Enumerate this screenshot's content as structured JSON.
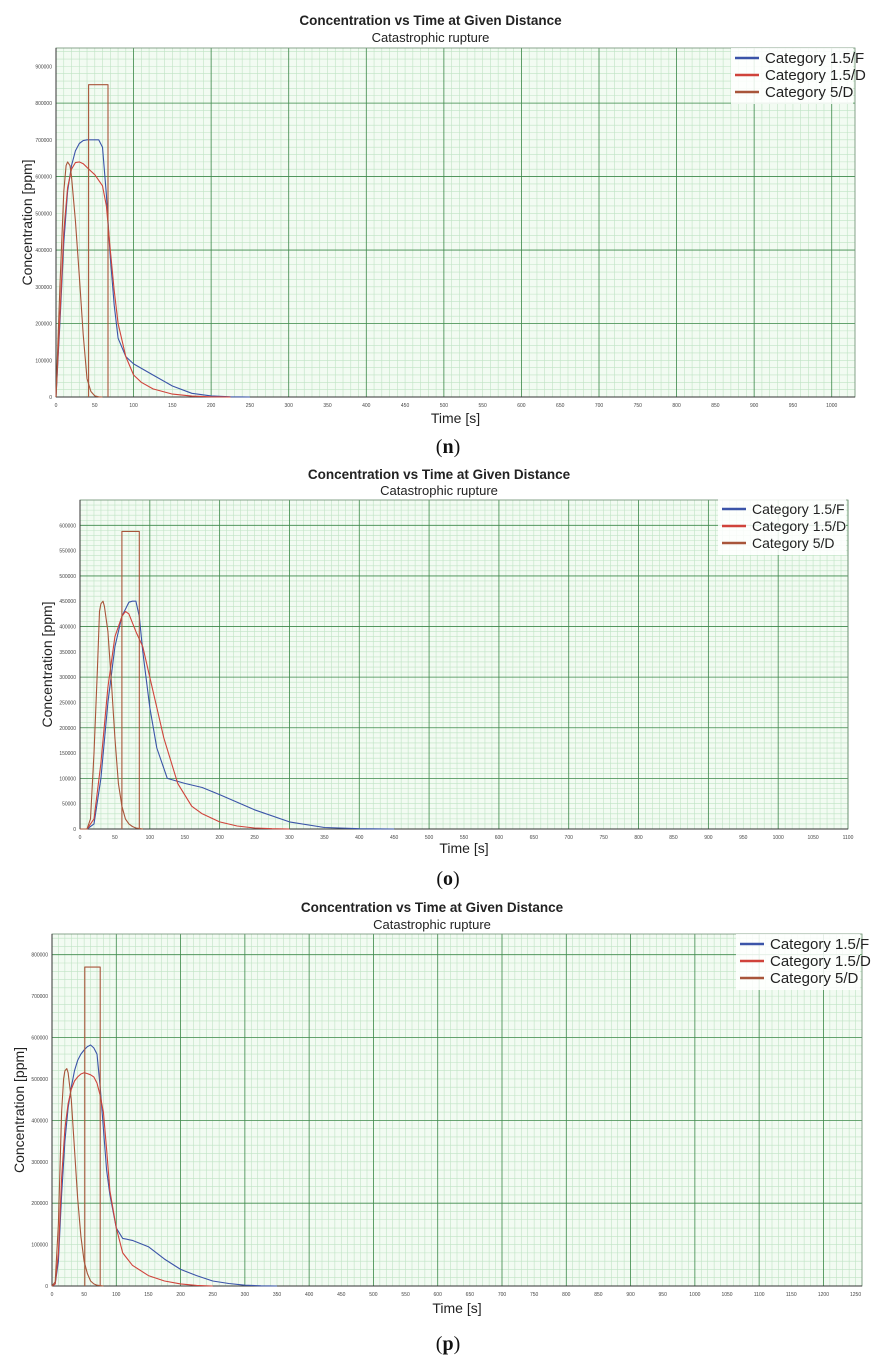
{
  "colors": {
    "series_blue": "#3b54a8",
    "series_red": "#d0433b",
    "series_brown": "#a8553a",
    "grid_major": "#3f8a4c",
    "grid_minor": "#bfe3c4",
    "plot_bg": "#f2fbf2"
  },
  "chart_data": [
    {
      "type": "line",
      "panel_label": "n",
      "title": "Concentration vs Time at Given Distance",
      "subtitle": "Catastrophic rupture",
      "xlabel": "Time [s]",
      "ylabel": "Concentration [ppm]",
      "xlim": [
        0,
        1030
      ],
      "ylim": [
        0,
        950000
      ],
      "x_ticks": [
        0,
        50,
        100,
        150,
        200,
        250,
        300,
        350,
        400,
        450,
        500,
        550,
        600,
        650,
        700,
        750,
        800,
        850,
        900,
        950,
        1000
      ],
      "y_ticks": [
        0,
        100000,
        200000,
        300000,
        400000,
        500000,
        600000,
        700000,
        800000,
        900000
      ],
      "grid": true,
      "legend_position": "top-right",
      "legend": [
        "Category 1.5/F",
        "Category 1.5/D",
        "Category 5/D"
      ],
      "series": [
        {
          "name": "Category 1.5/F",
          "x": [
            0,
            5,
            10,
            15,
            20,
            25,
            30,
            35,
            40,
            45,
            50,
            55,
            60,
            65,
            70,
            75,
            80,
            90,
            100,
            125,
            150,
            175,
            200,
            225,
            250
          ],
          "y": [
            0,
            200000,
            420000,
            560000,
            630000,
            670000,
            690000,
            698000,
            700000,
            700000,
            700000,
            700000,
            680000,
            550000,
            380000,
            250000,
            160000,
            110000,
            90000,
            60000,
            30000,
            10000,
            3000,
            500,
            0
          ]
        },
        {
          "name": "Category 1.5/D",
          "x": [
            0,
            5,
            10,
            15,
            20,
            25,
            30,
            35,
            40,
            45,
            50,
            55,
            60,
            65,
            70,
            75,
            80,
            90,
            100,
            110,
            125,
            150,
            175,
            200,
            225
          ],
          "y": [
            0,
            220000,
            450000,
            570000,
            620000,
            638000,
            640000,
            635000,
            625000,
            615000,
            605000,
            590000,
            575000,
            520000,
            400000,
            290000,
            200000,
            110000,
            60000,
            40000,
            22000,
            8000,
            2500,
            500,
            0
          ]
        },
        {
          "name": "Category 5/D",
          "x": [
            0,
            5,
            10,
            13,
            15,
            18,
            20,
            25,
            30,
            35,
            40,
            45,
            50,
            55,
            60
          ],
          "y": [
            0,
            300000,
            560000,
            630000,
            640000,
            630000,
            600000,
            480000,
            330000,
            170000,
            50000,
            15000,
            3000,
            500,
            0
          ]
        },
        {
          "name": "",
          "x": [
            42,
            42,
            67,
            67
          ],
          "y": [
            0,
            850000,
            850000,
            0
          ]
        }
      ]
    },
    {
      "type": "line",
      "panel_label": "o",
      "title": "Concentration vs Time at Given Distance",
      "subtitle": "Catastrophic rupture",
      "xlabel": "Time [s]",
      "ylabel": "Concentration [ppm]",
      "xlim": [
        0,
        1100
      ],
      "ylim": [
        0,
        650000
      ],
      "x_ticks": [
        0,
        50,
        100,
        150,
        200,
        250,
        300,
        350,
        400,
        450,
        500,
        550,
        600,
        650,
        700,
        750,
        800,
        850,
        900,
        950,
        1000,
        1050,
        1100
      ],
      "y_ticks": [
        0,
        50000,
        100000,
        150000,
        200000,
        250000,
        300000,
        350000,
        400000,
        450000,
        500000,
        550000,
        600000
      ],
      "grid": true,
      "legend_position": "top-right",
      "legend": [
        "Category 1.5/F",
        "Category 1.5/D",
        "Category 5/D"
      ],
      "series": [
        {
          "name": "Category 1.5/F",
          "x": [
            0,
            10,
            20,
            30,
            40,
            50,
            60,
            70,
            75,
            80,
            85,
            90,
            100,
            110,
            125,
            150,
            175,
            200,
            250,
            300,
            350,
            400,
            450
          ],
          "y": [
            0,
            0,
            10000,
            100000,
            250000,
            360000,
            420000,
            448000,
            450000,
            450000,
            420000,
            350000,
            240000,
            160000,
            100000,
            90000,
            82000,
            68000,
            38000,
            14000,
            3000,
            500,
            0
          ]
        },
        {
          "name": "Category 1.5/D",
          "x": [
            0,
            10,
            20,
            30,
            40,
            50,
            60,
            65,
            70,
            80,
            90,
            100,
            110,
            120,
            140,
            160,
            175,
            200,
            225,
            250,
            275,
            300
          ],
          "y": [
            0,
            0,
            20000,
            130000,
            280000,
            380000,
            420000,
            430000,
            425000,
            390000,
            360000,
            300000,
            240000,
            180000,
            90000,
            45000,
            30000,
            14000,
            6000,
            2000,
            500,
            0
          ]
        },
        {
          "name": "Category 5/D",
          "x": [
            0,
            10,
            15,
            20,
            25,
            28,
            30,
            33,
            35,
            40,
            45,
            50,
            55,
            60,
            65,
            70,
            75,
            80,
            90
          ],
          "y": [
            0,
            0,
            20000,
            150000,
            320000,
            430000,
            445000,
            450000,
            440000,
            390000,
            290000,
            180000,
            90000,
            45000,
            20000,
            10000,
            5000,
            2000,
            0
          ]
        },
        {
          "name": "",
          "x": [
            60,
            60,
            85,
            85
          ],
          "y": [
            0,
            588000,
            588000,
            0
          ]
        }
      ]
    },
    {
      "type": "line",
      "panel_label": "p",
      "title": "Concentration vs Time at Given Distance",
      "subtitle": "Catastrophic rupture",
      "xlabel": "Time [s]",
      "ylabel": "Concentration [ppm]",
      "xlim": [
        0,
        1260
      ],
      "ylim": [
        0,
        850000
      ],
      "x_ticks": [
        0,
        50,
        100,
        150,
        200,
        250,
        300,
        350,
        400,
        450,
        500,
        550,
        600,
        650,
        700,
        750,
        800,
        850,
        900,
        950,
        1000,
        1050,
        1100,
        1150,
        1200,
        1250
      ],
      "y_ticks": [
        0,
        100000,
        200000,
        300000,
        400000,
        500000,
        600000,
        700000,
        800000
      ],
      "grid": true,
      "legend_position": "top-right",
      "legend": [
        "Category 1.5/F",
        "Category 1.5/D",
        "Category 5/D"
      ],
      "series": [
        {
          "name": "Category 1.5/F",
          "x": [
            0,
            5,
            10,
            15,
            20,
            25,
            30,
            35,
            40,
            45,
            50,
            55,
            60,
            65,
            70,
            75,
            80,
            85,
            90,
            100,
            110,
            125,
            150,
            175,
            200,
            225,
            250,
            275,
            300,
            325,
            350
          ],
          "y": [
            0,
            5000,
            60000,
            220000,
            350000,
            430000,
            480000,
            520000,
            545000,
            560000,
            570000,
            578000,
            582000,
            575000,
            560000,
            480000,
            380000,
            280000,
            220000,
            140000,
            115000,
            110000,
            95000,
            65000,
            40000,
            25000,
            12000,
            6000,
            2000,
            500,
            0
          ]
        },
        {
          "name": "Category 1.5/D",
          "x": [
            0,
            5,
            10,
            15,
            20,
            25,
            30,
            35,
            40,
            45,
            50,
            55,
            60,
            65,
            70,
            75,
            80,
            85,
            90,
            100,
            110,
            125,
            150,
            175,
            200,
            225,
            250
          ],
          "y": [
            0,
            5000,
            80000,
            260000,
            380000,
            440000,
            475000,
            495000,
            505000,
            512000,
            515000,
            513000,
            510000,
            505000,
            490000,
            460000,
            420000,
            330000,
            230000,
            140000,
            80000,
            50000,
            25000,
            12000,
            5000,
            1500,
            0
          ]
        },
        {
          "name": "Category 5/D",
          "x": [
            0,
            5,
            10,
            15,
            18,
            20,
            23,
            25,
            30,
            35,
            40,
            45,
            50,
            55,
            60,
            65,
            70,
            80
          ],
          "y": [
            0,
            10000,
            150000,
            420000,
            500000,
            520000,
            525000,
            515000,
            450000,
            330000,
            210000,
            120000,
            60000,
            30000,
            12000,
            5000,
            2000,
            0
          ]
        },
        {
          "name": "",
          "x": [
            51,
            51,
            75,
            75
          ],
          "y": [
            0,
            770000,
            770000,
            0
          ]
        }
      ]
    }
  ]
}
